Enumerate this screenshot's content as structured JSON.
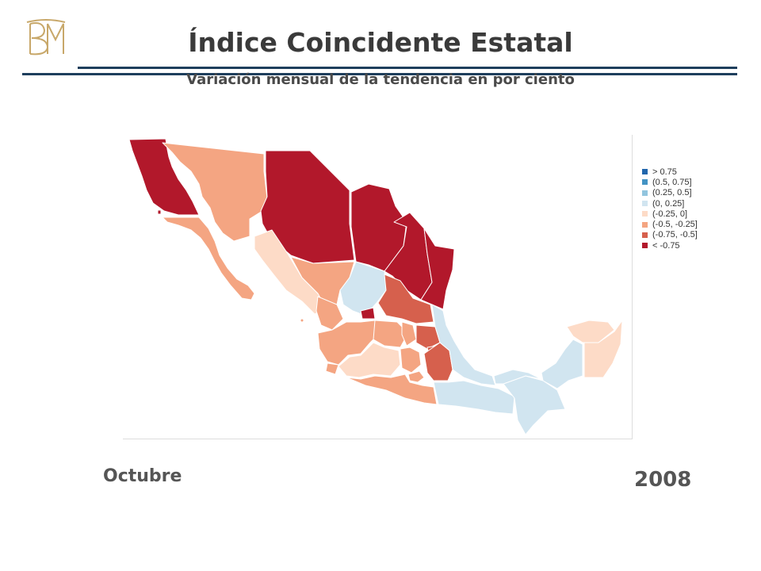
{
  "header": {
    "title": "Índice Coincidente Estatal",
    "subtitle": "Variación mensual de la tendencia en por ciento"
  },
  "legend": {
    "items": [
      {
        "label": "> 0.75",
        "color": "#2166ac"
      },
      {
        "label": "(0.5, 0.75]",
        "color": "#4393c3"
      },
      {
        "label": "(0.25, 0.5]",
        "color": "#92c5de"
      },
      {
        "label": "(0, 0.25]",
        "color": "#d1e5f0"
      },
      {
        "label": "(-0.25, 0]",
        "color": "#fddbc7"
      },
      {
        "label": "(-0.5, -0.25]",
        "color": "#f4a582"
      },
      {
        "label": "(-0.75, -0.5]",
        "color": "#d6604d"
      },
      {
        "label": "< -0.75",
        "color": "#b2182b"
      }
    ]
  },
  "footer": {
    "month": "Octubre",
    "year": "2008"
  }
}
